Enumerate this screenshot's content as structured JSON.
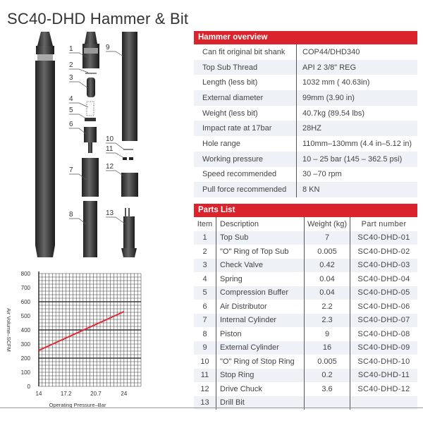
{
  "title": "SC40-DHD Hammer & Bit",
  "diagram": {
    "callouts": [
      "1",
      "2",
      "3",
      "4",
      "5",
      "6",
      "7",
      "8",
      "9",
      "10",
      "11",
      "12",
      "13"
    ]
  },
  "overview": {
    "heading": "Hammer overview",
    "rows": [
      {
        "label": "Can fit original bit shank",
        "value": "COP44/DHD340"
      },
      {
        "label": "Top Sub Thread",
        "value": "API 2 3/8\"  REG"
      },
      {
        "label": "Length (less bit)",
        "value": "1032 mm ( 40.63in)"
      },
      {
        "label": "External diameter",
        "value": "99mm (3.90 in)"
      },
      {
        "label": "Weight (less bit)",
        "value": "40.7kg (89.54 lbs)"
      },
      {
        "label": "Impact rate at 17bar",
        "value": "28HZ"
      },
      {
        "label": "Hole range",
        "value": "110mm–130mm (4.4 in–5.12 in)"
      },
      {
        "label": "Working pressure",
        "value": "10 – 25 bar (145 – 362.5 psi)"
      },
      {
        "label": "Speed recommended",
        "value": "30 –70 rpm"
      },
      {
        "label": "Pull force recommended",
        "value": "8 KN"
      }
    ]
  },
  "parts": {
    "heading": "Parts List",
    "columns": [
      "Item",
      "Description",
      "Weight (kg)",
      "Part number"
    ],
    "rows": [
      [
        "1",
        "Top Sub",
        "7",
        "SC40-DHD-01"
      ],
      [
        "2",
        " \"O\"  Ring of Top Sub",
        "0.005",
        "SC40-DHD-02"
      ],
      [
        "3",
        "Check Valve",
        "0.42",
        "SC40-DHD-03"
      ],
      [
        "4",
        "Spring",
        "0.04",
        "SC40-DHD-04"
      ],
      [
        "5",
        "Compression Buffer",
        "0.04",
        "SC40-DHD-05"
      ],
      [
        "6",
        "Air Distributor",
        "2.2",
        "SC40-DHD-06"
      ],
      [
        "7",
        "Internal Cylinder",
        "2.3",
        "SC40-DHD-07"
      ],
      [
        "8",
        "Piston",
        "9",
        "SC40-DHD-08"
      ],
      [
        "9",
        "External Cylinder",
        "16",
        "SC40-DHD-09"
      ],
      [
        "10",
        " \"O\"  Ring of Stop Ring",
        "0.005",
        "SC40-DHD-10"
      ],
      [
        "11",
        "Stop Ring",
        "0.2",
        "SC40-DHD-11"
      ],
      [
        "12",
        "Drive Chuck",
        "3.6",
        "SC40-DHD-12"
      ],
      [
        "13",
        "Drill Bit",
        "",
        ""
      ]
    ]
  },
  "chart_data": {
    "type": "line",
    "xlabel": "Operating Pressure–Bar",
    "ylabel": "Air Volume–SCFM",
    "xticks": [
      "14",
      "17.2",
      "20.7",
      "24"
    ],
    "xtick_values": [
      14,
      17.2,
      20.7,
      24
    ],
    "yticks": [
      "0",
      "100",
      "200",
      "300",
      "400",
      "500",
      "600",
      "700",
      "800"
    ],
    "xlim": [
      14,
      26
    ],
    "ylim": [
      0,
      800
    ],
    "grid": true,
    "line_color": "#e02a35",
    "series": [
      {
        "x": [
          14,
          24
        ],
        "y": [
          255,
          530
        ]
      }
    ]
  }
}
